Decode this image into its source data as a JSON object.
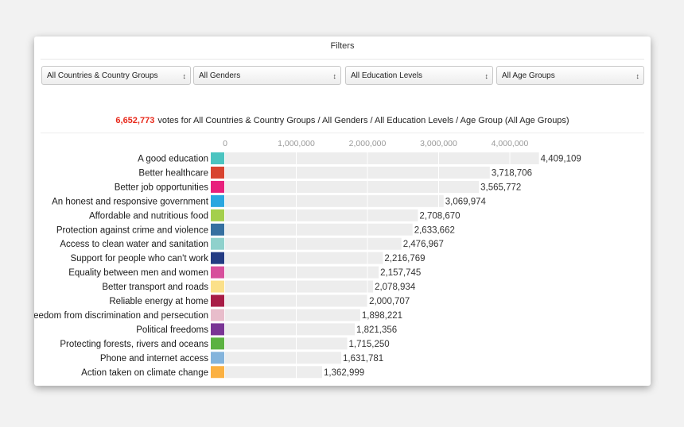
{
  "filters": {
    "title": "Filters",
    "selects": [
      {
        "value": "All Countries & Country Groups"
      },
      {
        "value": "All Genders"
      },
      {
        "value": "All Education Levels"
      },
      {
        "value": "All Age Groups"
      }
    ],
    "arrows_glyph": "↕"
  },
  "summary": {
    "count": "6,652,773",
    "text": "votes for All Countries & Country Groups / All Genders / All Education Levels / Age Group (All Age Groups)"
  },
  "chart_data": {
    "type": "bar",
    "orientation": "horizontal",
    "title": "",
    "xlabel": "",
    "ylabel": "",
    "xlim": [
      0,
      4400000
    ],
    "grid": true,
    "ticks": [
      {
        "value": 0,
        "label": "0"
      },
      {
        "value": 1000000,
        "label": "1,000,000"
      },
      {
        "value": 2000000,
        "label": "2,000,000"
      },
      {
        "value": 3000000,
        "label": "3,000,000"
      },
      {
        "value": 4000000,
        "label": "4,000,000"
      }
    ],
    "categories": [
      "A good education",
      "Better healthcare",
      "Better job opportunities",
      "An honest and responsive government",
      "Affordable and nutritious food",
      "Protection against crime and violence",
      "Access to clean water and sanitation",
      "Support for people who can't work",
      "Equality between men and women",
      "Better transport and roads",
      "Reliable energy at home",
      "Freedom from discrimination and persecution",
      "Political freedoms",
      "Protecting forests, rivers and oceans",
      "Phone and internet access",
      "Action taken on climate change"
    ],
    "values": [
      4409109,
      3718706,
      3565772,
      3069974,
      2708670,
      2633662,
      2476967,
      2216769,
      2157745,
      2078934,
      2000707,
      1898221,
      1821356,
      1715250,
      1631781,
      1362999
    ],
    "value_labels": [
      "4,409,109",
      "3,718,706",
      "3,565,772",
      "3,069,974",
      "2,708,670",
      "2,633,662",
      "2,476,967",
      "2,216,769",
      "2,157,745",
      "2,078,934",
      "2,000,707",
      "1,898,221",
      "1,821,356",
      "1,715,250",
      "1,631,781",
      "1,362,999"
    ],
    "swatch_colors": [
      "#4bc4c0",
      "#d8442f",
      "#e8207c",
      "#2aa7e0",
      "#a4cf4c",
      "#3670a0",
      "#8fd1cc",
      "#233b83",
      "#d74f9c",
      "#fbe08a",
      "#a81c46",
      "#e8bdcb",
      "#7a3595",
      "#5bb241",
      "#84b4dc",
      "#fbb142"
    ],
    "bar_color": "#ededed"
  }
}
